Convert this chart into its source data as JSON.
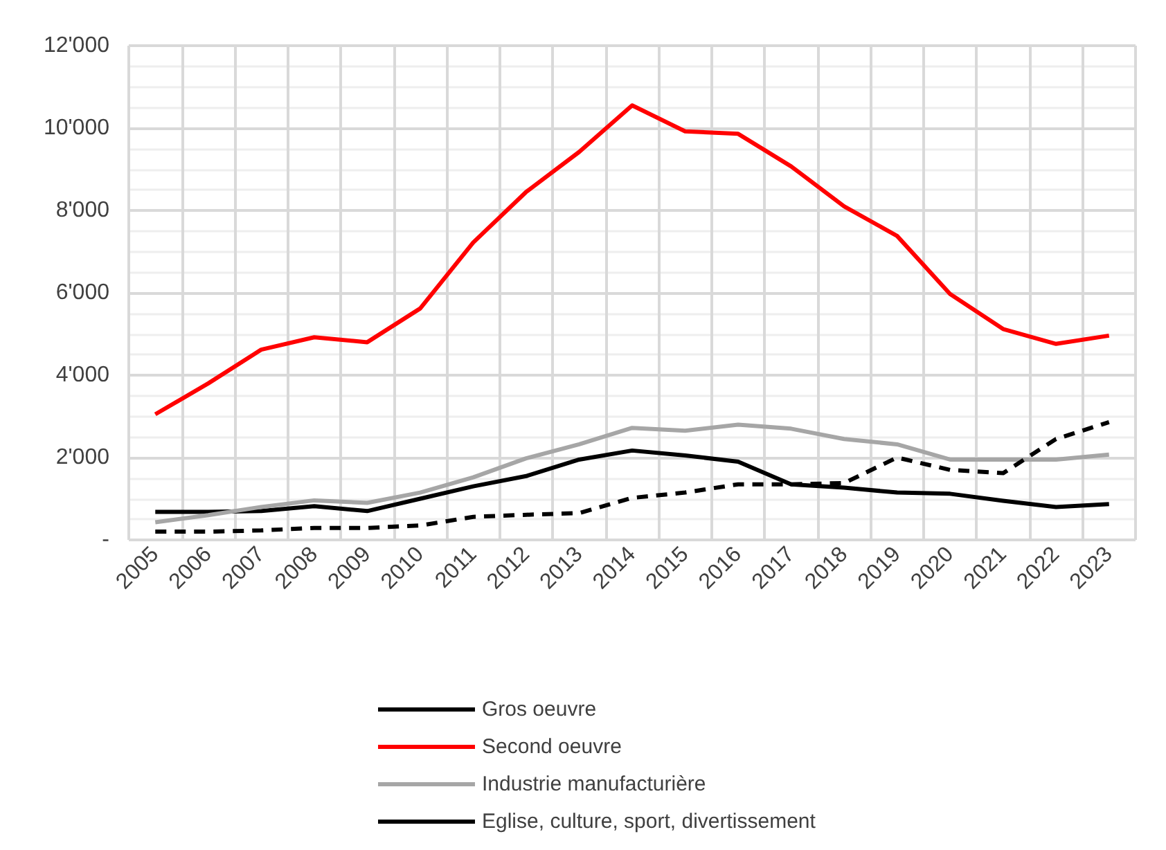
{
  "chart_data": {
    "type": "line",
    "categories": [
      "2005",
      "2006",
      "2007",
      "2008",
      "2009",
      "2010",
      "2011",
      "2012",
      "2013",
      "2014",
      "2015",
      "2016",
      "2017",
      "2018",
      "2019",
      "2020",
      "2021",
      "2022",
      "2023"
    ],
    "series": [
      {
        "name": "Gros oeuvre",
        "color": "#000000",
        "values": [
          680,
          680,
          700,
          820,
          700,
          1000,
          1300,
          1550,
          1950,
          2170,
          2050,
          1900,
          1350,
          1270,
          1150,
          1120,
          950,
          800,
          870
        ]
      },
      {
        "name": "Second oeuvre",
        "color": "#ff0000",
        "values": [
          3050,
          3800,
          4620,
          4920,
          4800,
          5620,
          7220,
          8450,
          9420,
          10550,
          9920,
          9860,
          9070,
          8100,
          7380,
          5970,
          5120,
          4760,
          4960
        ]
      },
      {
        "name": "Industrie manufacturière",
        "color": "#a6a6a6",
        "values": [
          430,
          600,
          800,
          960,
          900,
          1150,
          1520,
          1980,
          2320,
          2720,
          2650,
          2800,
          2700,
          2450,
          2320,
          1950,
          1950,
          1950,
          2070
        ]
      },
      {
        "name": "Eglise, culture, sport, divertissement",
        "color": "#000000",
        "line_style": "dashed",
        "values": [
          200,
          200,
          230,
          290,
          290,
          350,
          560,
          610,
          650,
          1020,
          1150,
          1350,
          1350,
          1380,
          2000,
          1700,
          1620,
          2450,
          2860
        ]
      }
    ],
    "ylim": [
      0,
      12000
    ],
    "yticks": [
      {
        "value": 0,
        "label": "-"
      },
      {
        "value": 2000,
        "label": "2'000"
      },
      {
        "value": 4000,
        "label": "4'000"
      },
      {
        "value": 6000,
        "label": "6'000"
      },
      {
        "value": 8000,
        "label": "8'000"
      },
      {
        "value": 10000,
        "label": "10'000"
      },
      {
        "value": 12000,
        "label": "12'000"
      }
    ],
    "grid": true,
    "legend": "bottom",
    "marker": "none",
    "line_style": "solid"
  }
}
